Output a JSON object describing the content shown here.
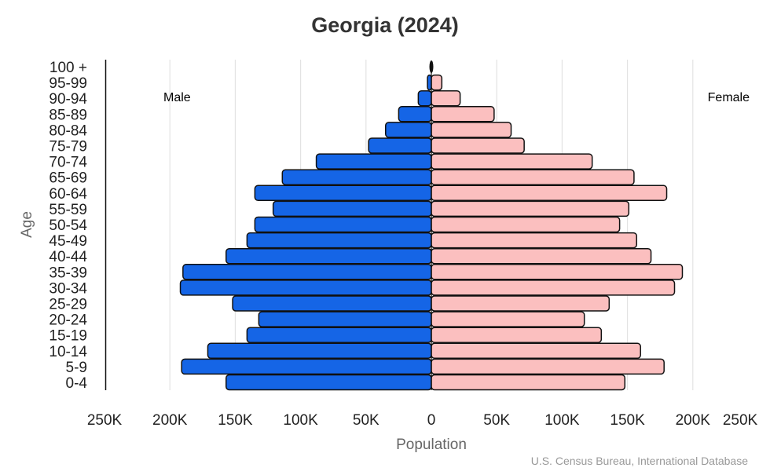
{
  "chart_data": {
    "type": "bar",
    "orientation": "horizontal-population-pyramid",
    "title": "Georgia (2024)",
    "xlabel": "Population",
    "ylabel": "Age",
    "source": "U.S. Census Bureau, International Database",
    "xlim": [
      -250000,
      250000
    ],
    "x_tick_labels": [
      "250K",
      "200K",
      "150K",
      "100K",
      "50K",
      "0",
      "50K",
      "100K",
      "150K",
      "200K",
      "250K"
    ],
    "x_tick_values": [
      -250000,
      -200000,
      -150000,
      -100000,
      -50000,
      0,
      50000,
      100000,
      150000,
      200000,
      250000
    ],
    "grid": "vertical",
    "categories": [
      "0-4",
      "5-9",
      "10-14",
      "15-19",
      "20-24",
      "25-29",
      "30-34",
      "35-39",
      "40-44",
      "45-49",
      "50-54",
      "55-59",
      "60-64",
      "65-69",
      "70-74",
      "75-79",
      "80-84",
      "85-89",
      "90-94",
      "95-99",
      "100 +"
    ],
    "series": [
      {
        "name": "Male",
        "color": "#1565e6",
        "label_position": "top-left",
        "values": [
          157000,
          191000,
          171000,
          141000,
          132000,
          152000,
          192000,
          190000,
          157000,
          141000,
          135000,
          121000,
          135000,
          114000,
          88000,
          48000,
          35000,
          25000,
          10000,
          3000,
          1000
        ]
      },
      {
        "name": "Female",
        "color": "#fbbfbf",
        "label_position": "top-right",
        "values": [
          148000,
          178000,
          160000,
          130000,
          117000,
          136000,
          186000,
          192000,
          168000,
          157000,
          144000,
          151000,
          180000,
          155000,
          123000,
          71000,
          61000,
          48000,
          22000,
          8000,
          1000
        ]
      }
    ]
  }
}
